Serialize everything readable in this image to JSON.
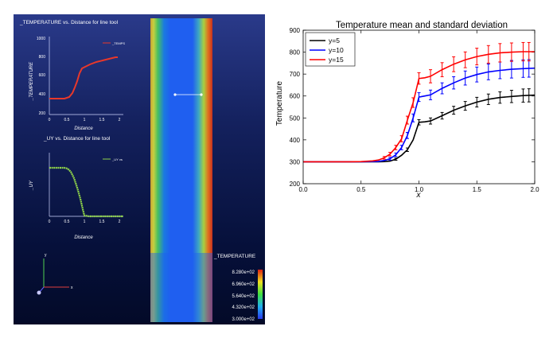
{
  "left_panel": {
    "plot1": {
      "title": "_TEMPERATURE vs. Distance for line tool",
      "ylabel": "_TEMPERATURE",
      "xlabel": "Distance",
      "legend": "_TEMPS",
      "yticks": [
        "1000",
        "800",
        "600",
        "400",
        "200"
      ],
      "xticks": [
        "0",
        "0.5",
        "1",
        "1.5",
        "2"
      ],
      "curve_color": "#e8382a"
    },
    "plot2": {
      "title": "_UY vs. Distance for line tool",
      "ylabel": "_UY",
      "xlabel": "Distance",
      "legend": "_UY vs",
      "xticks": [
        "0",
        "0.5",
        "1",
        "1.5",
        "2"
      ],
      "curve_color": "#8ed24a"
    },
    "axes_widget": {
      "x": "x",
      "y": "y"
    },
    "colorbar": {
      "title": "_TEMPERATURE",
      "labels": [
        "8.280e+02",
        "6.960e+02",
        "5.640e+02",
        "4.320e+02",
        "3.000e+02"
      ]
    }
  },
  "chart_data": {
    "type": "line",
    "title": "Temperature mean and standard deviation",
    "xlabel": "x",
    "ylabel": "Temperature",
    "xlim": [
      0,
      2.0
    ],
    "ylim": [
      200,
      900
    ],
    "xticks": [
      "0.0",
      "0.5",
      "1.0",
      "1.5",
      "2.0"
    ],
    "yticks": [
      "200",
      "300",
      "400",
      "500",
      "600",
      "700",
      "800",
      "900"
    ],
    "legend_position": "top-left",
    "x": [
      0,
      0.2,
      0.4,
      0.5,
      0.6,
      0.65,
      0.7,
      0.75,
      0.8,
      0.85,
      0.9,
      0.95,
      1.0,
      1.05,
      1.1,
      1.2,
      1.3,
      1.4,
      1.5,
      1.6,
      1.7,
      1.8,
      1.9,
      2.0
    ],
    "series": [
      {
        "name": "y=5",
        "color": "#000000",
        "values": [
          300,
          300,
          300,
          300,
          300,
          300,
          301,
          303,
          312,
          330,
          355,
          400,
          480,
          482,
          486,
          510,
          535,
          555,
          572,
          585,
          593,
          598,
          602,
          604
        ],
        "errorbar_x": [
          0.8,
          0.9,
          1.0,
          1.1,
          1.2,
          1.3,
          1.4,
          1.5,
          1.6,
          1.7,
          1.8,
          1.9,
          1.95
        ],
        "errorbar_halfwidth": [
          5,
          8,
          12,
          14,
          15,
          18,
          20,
          22,
          24,
          26,
          28,
          30,
          30
        ]
      },
      {
        "name": "y=10",
        "color": "#0000ff",
        "values": [
          300,
          300,
          300,
          300,
          301,
          302,
          306,
          314,
          332,
          365,
          420,
          500,
          595,
          600,
          605,
          635,
          660,
          682,
          698,
          710,
          717,
          722,
          725,
          727
        ],
        "errorbar_x": [
          0.75,
          0.8,
          0.85,
          0.9,
          0.95,
          1.0,
          1.1,
          1.2,
          1.3,
          1.4,
          1.5,
          1.6,
          1.7,
          1.8,
          1.9,
          1.95
        ],
        "errorbar_halfwidth": [
          6,
          8,
          10,
          14,
          18,
          20,
          22,
          25,
          28,
          32,
          34,
          36,
          38,
          40,
          40,
          40
        ]
      },
      {
        "name": "y=15",
        "color": "#ff0000",
        "values": [
          300,
          300,
          300,
          301,
          304,
          308,
          318,
          335,
          365,
          405,
          490,
          570,
          680,
          683,
          690,
          720,
          745,
          765,
          780,
          790,
          797,
          800,
          802,
          802
        ],
        "errorbar_x": [
          0.7,
          0.75,
          0.8,
          0.85,
          0.9,
          0.95,
          1.0,
          1.1,
          1.2,
          1.3,
          1.4,
          1.5,
          1.6,
          1.7,
          1.8,
          1.9,
          1.95
        ],
        "errorbar_halfwidth": [
          6,
          8,
          10,
          14,
          18,
          22,
          26,
          30,
          32,
          34,
          36,
          38,
          40,
          42,
          42,
          42,
          42
        ]
      }
    ]
  }
}
